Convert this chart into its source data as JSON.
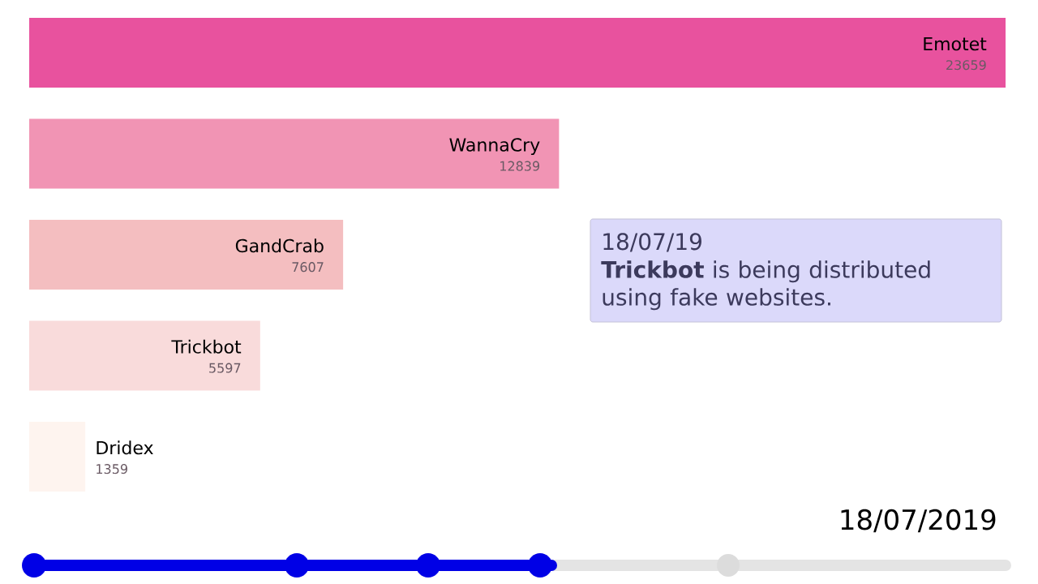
{
  "chart_data": {
    "type": "bar",
    "orientation": "horizontal",
    "categories": [
      "Emotet",
      "WannaCry",
      "GandCrab",
      "Trickbot",
      "Dridex"
    ],
    "values": [
      23659,
      12839,
      7607,
      5597,
      1359
    ],
    "colors": [
      "#e8529e",
      "#f194b4",
      "#f4bec0",
      "#f9dbdb",
      "#fef4ef"
    ],
    "xlim": [
      0,
      23659
    ],
    "data_labels": true,
    "annotations": [
      "18/07/19",
      "**Trickbot** is being distributed using fake websites.",
      "18/07/2019"
    ]
  }
}
